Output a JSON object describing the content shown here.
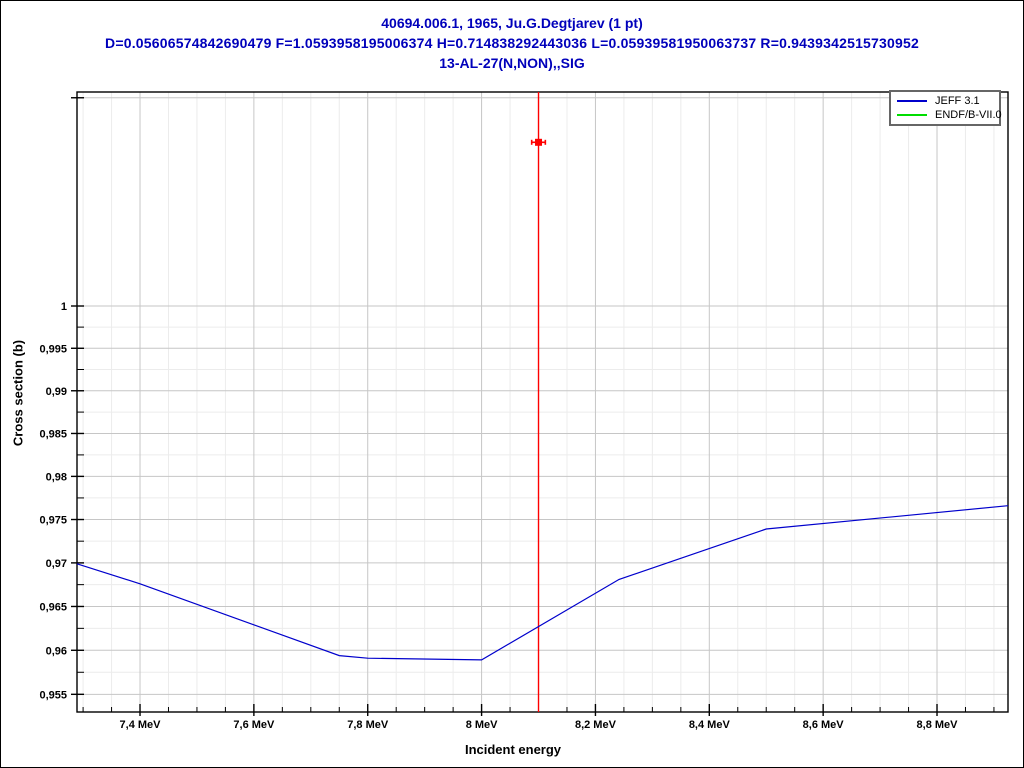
{
  "titles": {
    "line1": "40694.006.1, 1965, Ju.G.Degtjarev (1 pt)",
    "line2": "D=0.05606574842690479 F=1.0593958195006374 H=0.714838292443036 L=0.05939581950063737 R=0.9439342515730952",
    "line3": "13-AL-27(N,NON),,SIG",
    "color": "#0000bb"
  },
  "axes": {
    "x_label": "Incident energy",
    "y_label": "Cross section (b)"
  },
  "legend": {
    "entries": [
      {
        "label": "JEFF 3.1",
        "color": "#0000cc"
      },
      {
        "label": "ENDF/B-VII.0",
        "color": "#00dd00"
      }
    ]
  },
  "chart_data": {
    "type": "line",
    "title": "40694.006.1, 1965, Ju.G.Degtjarev (1 pt)",
    "reaction": "13-AL-27(N,NON),,SIG",
    "xlabel": "Incident energy",
    "ylabel": "Cross section (b)",
    "x_unit": "MeV",
    "y_unit": "b",
    "y_scale": "log",
    "grid": true,
    "legend_position": "top-right",
    "xlim": [
      7.2893,
      8.9247
    ],
    "ylim": [
      0.953,
      1.0257
    ],
    "x_major_ticks": [
      {
        "v": 7.4,
        "label": "7,4 MeV"
      },
      {
        "v": 7.6,
        "label": "7,6 MeV"
      },
      {
        "v": 7.8,
        "label": "7,8 MeV"
      },
      {
        "v": 8.0,
        "label": "8 MeV"
      },
      {
        "v": 8.2,
        "label": "8,2 MeV"
      },
      {
        "v": 8.4,
        "label": "8,4 MeV"
      },
      {
        "v": 8.6,
        "label": "8,6 MeV"
      },
      {
        "v": 8.8,
        "label": "8,8 MeV"
      }
    ],
    "x_minor_step": 0.05,
    "y_major_ticks": [
      {
        "v": 0.955,
        "label": "0,955"
      },
      {
        "v": 0.96,
        "label": "0,96"
      },
      {
        "v": 0.965,
        "label": "0,965"
      },
      {
        "v": 0.97,
        "label": "0,97"
      },
      {
        "v": 0.975,
        "label": "0,975"
      },
      {
        "v": 0.98,
        "label": "0,98"
      },
      {
        "v": 0.985,
        "label": "0,985"
      },
      {
        "v": 0.99,
        "label": "0,99"
      },
      {
        "v": 0.995,
        "label": "0,995"
      },
      {
        "v": 1.0,
        "label": "1"
      },
      {
        "v": 1.025,
        "label": ""
      }
    ],
    "y_minor_ticks": [
      0.9575,
      0.9625,
      0.9675,
      0.9725,
      0.9775,
      0.9825,
      0.9875,
      0.9925,
      0.9975
    ],
    "series": [
      {
        "name": "JEFF 3.1",
        "color": "#0000cc",
        "points": [
          [
            7.2893,
            0.9699
          ],
          [
            7.4,
            0.9676
          ],
          [
            7.75,
            0.9594
          ],
          [
            7.8,
            0.9591
          ],
          [
            8.0,
            0.9589
          ],
          [
            8.2415,
            0.9681
          ],
          [
            8.5,
            0.9739
          ],
          [
            8.9247,
            0.9766
          ]
        ]
      },
      {
        "name": "ENDF/B-VII.0",
        "color": "#00dd00",
        "points": []
      }
    ],
    "exp_point": {
      "x": 8.1,
      "y": 1.0196,
      "xerr": 0.012,
      "color": "#ff0000",
      "marker": "square"
    },
    "vline": {
      "x": 8.1,
      "color": "#ff0000"
    },
    "colors": {
      "grid_major": "#c6c6c6",
      "grid_minor": "#ececec",
      "axis": "#000000"
    }
  }
}
